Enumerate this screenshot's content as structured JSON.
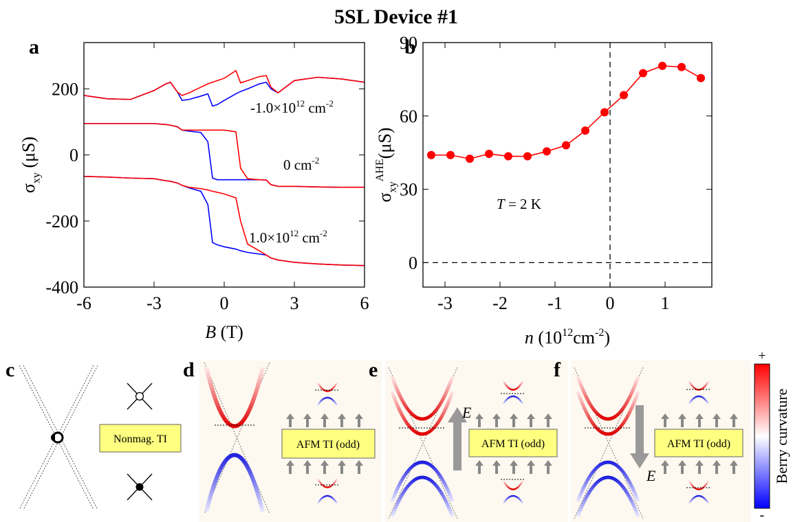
{
  "title": "5SL Device #1",
  "chart_data": [
    {
      "type": "line",
      "label": "a",
      "xlabel": [
        {
          "text": "B",
          "italic": true
        },
        {
          "text": " (T)"
        }
      ],
      "ylabel": [
        {
          "text": "σ"
        },
        {
          "text": "xy",
          "sub": true
        },
        {
          "text": " (μS)"
        }
      ],
      "x": [
        -6,
        -5,
        -4,
        -3,
        -2.5,
        -2.3,
        -2,
        -1.8,
        -1.5,
        -1,
        -0.7,
        -0.5,
        -0.3,
        0,
        0.5,
        0.7,
        1,
        1.5,
        1.8,
        2,
        2.3,
        3,
        4,
        5,
        6
      ],
      "series": [
        {
          "color": "#0000ff",
          "values": [
            180,
            170,
            168,
            195,
            215,
            220,
            190,
            165,
            168,
            178,
            185,
            148,
            152,
            165,
            185,
            192,
            200,
            215,
            220,
            200,
            188,
            225,
            235,
            230,
            220
          ]
        },
        {
          "color": "#ff0000",
          "values": [
            180,
            170,
            168,
            195,
            215,
            220,
            190,
            180,
            188,
            205,
            215,
            220,
            225,
            232,
            255,
            218,
            225,
            237,
            240,
            205,
            188,
            225,
            235,
            230,
            220
          ]
        },
        {
          "color": "#0000ff",
          "values": [
            95,
            95,
            95,
            95,
            92,
            90,
            85,
            75,
            72,
            68,
            40,
            -70,
            -75,
            -75,
            -75,
            -75,
            -75,
            -75,
            -76,
            -90,
            -95,
            -95,
            -97,
            -98,
            -98
          ]
        },
        {
          "color": "#ff0000",
          "values": [
            95,
            95,
            95,
            95,
            92,
            90,
            85,
            75,
            75,
            75,
            75,
            75,
            75,
            75,
            70,
            -40,
            -72,
            -75,
            -76,
            -90,
            -95,
            -95,
            -97,
            -98,
            -98
          ]
        },
        {
          "color": "#0000ff",
          "values": [
            -65,
            -67,
            -70,
            -72,
            -78,
            -80,
            -85,
            -92,
            -100,
            -110,
            -150,
            -265,
            -272,
            -278,
            -285,
            -290,
            -295,
            -300,
            -303,
            -312,
            -318,
            -325,
            -330,
            -333,
            -335
          ]
        },
        {
          "color": "#ff0000",
          "values": [
            -65,
            -67,
            -70,
            -72,
            -78,
            -80,
            -85,
            -92,
            -98,
            -102,
            -106,
            -110,
            -113,
            -118,
            -130,
            -200,
            -270,
            -290,
            -303,
            -312,
            -318,
            -325,
            -330,
            -333,
            -335
          ]
        }
      ],
      "annotations": [
        [
          {
            "text": "-1.0×10"
          },
          {
            "text": "12",
            "sup": true
          },
          {
            "text": " cm"
          },
          {
            "text": "-2",
            "sup": true
          }
        ],
        [
          {
            "text": "0 cm"
          },
          {
            "text": "-2",
            "sup": true
          }
        ],
        [
          {
            "text": "1.0×10"
          },
          {
            "text": "12",
            "sup": true
          },
          {
            "text": " cm"
          },
          {
            "text": "-2",
            "sup": true
          }
        ]
      ],
      "xlim": [
        -6,
        6
      ],
      "xticks": [
        -6,
        -3,
        0,
        3,
        6
      ],
      "ylim": [
        -400,
        340
      ],
      "yticks": [
        -400,
        -200,
        0,
        200
      ]
    },
    {
      "type": "line",
      "label": "b",
      "markers": true,
      "xlabel": [
        {
          "text": "n",
          "italic": true
        },
        {
          "text": " (10"
        },
        {
          "text": "12",
          "sup": true
        },
        {
          "text": "cm"
        },
        {
          "text": "-2",
          "sup": true
        },
        {
          "text": ")"
        }
      ],
      "ylabel": [
        {
          "text": "σ"
        },
        {
          "text": "xy",
          "sub": true
        },
        {
          "text": "AHE",
          "sup": true
        },
        {
          "text": "(μS)"
        }
      ],
      "x": [
        -3.25,
        -2.9,
        -2.55,
        -2.2,
        -1.85,
        -1.5,
        -1.15,
        -0.8,
        -0.45,
        -0.1,
        0.25,
        0.6,
        0.95,
        1.3,
        1.65
      ],
      "series": [
        {
          "color": "#ff0000",
          "values": [
            44,
            44,
            42.5,
            44.5,
            43.5,
            43.5,
            45.5,
            48,
            54,
            61.5,
            68.5,
            77.5,
            80.5,
            80,
            75.5
          ]
        }
      ],
      "annotations": [
        [
          {
            "text": "T",
            "italic": true
          },
          {
            "text": " = 2 K"
          }
        ]
      ],
      "hlines": [
        0
      ],
      "vlines": [
        0
      ],
      "xlim": [
        -3.4,
        1.85
      ],
      "xticks": [
        -3,
        -2,
        -1,
        0,
        1
      ],
      "ylim": [
        -10,
        90
      ],
      "yticks": [
        0,
        30,
        60,
        90
      ]
    }
  ],
  "diagrams": [
    {
      "label": "c",
      "box": "Nonmag. TI"
    },
    {
      "label": "d",
      "box": "AFM TI (odd)"
    },
    {
      "label": "e",
      "box": "AFM TI (odd)",
      "field": "E"
    },
    {
      "label": "f",
      "box": "AFM TI (odd)",
      "field": "E"
    }
  ],
  "colorbar": {
    "label": "Berry curvature",
    "max": "+",
    "min": "-"
  }
}
